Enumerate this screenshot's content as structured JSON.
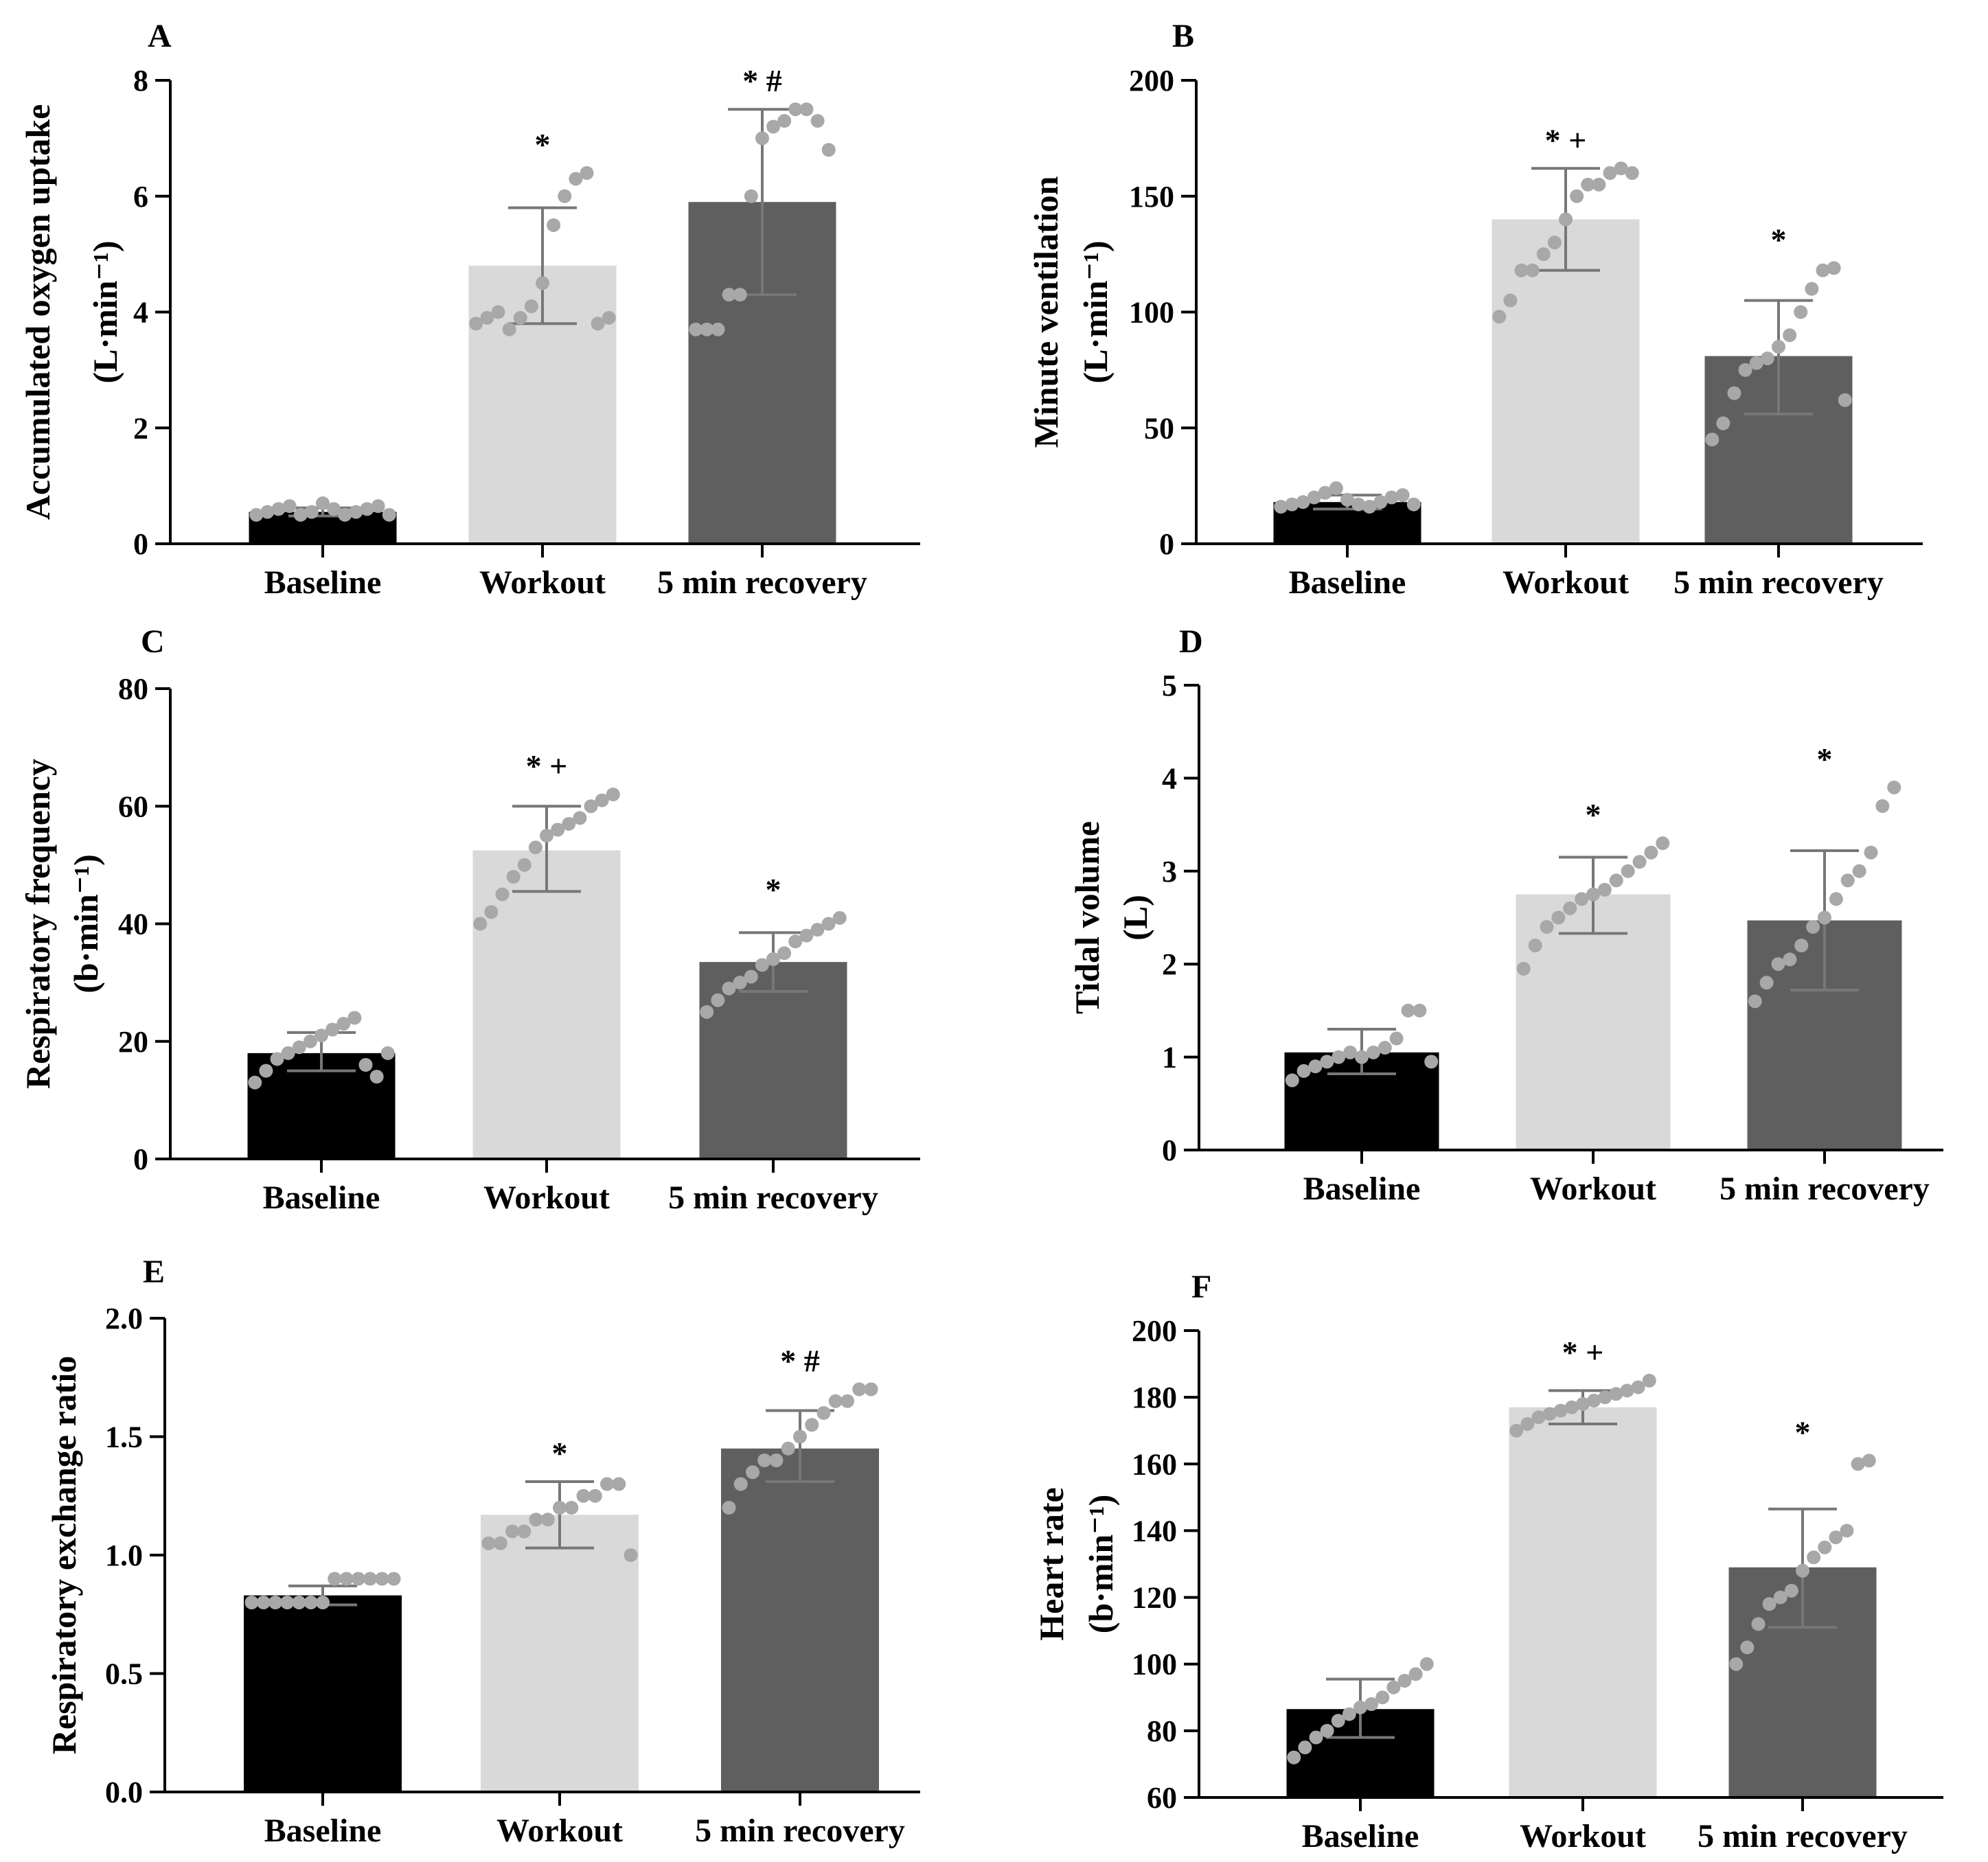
{
  "figure": {
    "panels": [
      {
        "id": "A",
        "letter": "A",
        "ylabel_lines": [
          "Accumulated oxygen uptake",
          "(L·min⁻¹)"
        ],
        "sig": [
          "*",
          "* #"
        ]
      },
      {
        "id": "B",
        "letter": "B",
        "ylabel_lines": [
          "Minute ventilation",
          "(L·min⁻¹)"
        ],
        "sig": [
          "* +",
          "*"
        ]
      },
      {
        "id": "C",
        "letter": "C",
        "ylabel_lines": [
          "Respiratory frequency",
          "(b·min⁻¹)"
        ],
        "sig": [
          "* +",
          "*"
        ]
      },
      {
        "id": "D",
        "letter": "D",
        "ylabel_lines": [
          "Tidal volume",
          "(L)"
        ],
        "sig": [
          "*",
          "*"
        ]
      },
      {
        "id": "E",
        "letter": "E",
        "ylabel_lines": [
          "Respiratory exchange ratio"
        ],
        "sig": [
          "*",
          "* #"
        ]
      },
      {
        "id": "F",
        "letter": "F",
        "ylabel_lines": [
          "Heart rate",
          "(b·min⁻¹)"
        ],
        "sig": [
          "* +",
          "*"
        ]
      }
    ]
  },
  "colors": {
    "baseline": "#000000",
    "workout": "#d9d9d9",
    "recovery": "#5f5f5f",
    "dots": "#a8a8a8",
    "error": "#777777"
  },
  "chart_data": [
    {
      "type": "bar",
      "panel": "A",
      "categories": [
        "Baseline",
        "Workout",
        "5 min recovery"
      ],
      "values": [
        0.55,
        4.8,
        5.9
      ],
      "error_low": [
        0.48,
        3.8,
        4.3
      ],
      "error_high": [
        0.62,
        5.8,
        7.5
      ],
      "points": [
        [
          0.5,
          0.55,
          0.6,
          0.65,
          0.5,
          0.55,
          0.7,
          0.6,
          0.5,
          0.55,
          0.6,
          0.65,
          0.5
        ],
        [
          3.8,
          3.9,
          4.0,
          3.7,
          3.9,
          4.1,
          4.5,
          5.5,
          6.0,
          6.3,
          6.4,
          3.8,
          3.9
        ],
        [
          3.7,
          3.7,
          3.7,
          4.3,
          4.3,
          6.0,
          7.0,
          7.2,
          7.3,
          7.5,
          7.5,
          7.3,
          6.8
        ]
      ],
      "ylim": [
        0,
        8
      ],
      "yticks": [
        0,
        2,
        4,
        6,
        8
      ],
      "tick_labels": [
        "0",
        "2",
        "4",
        "6",
        "8"
      ]
    },
    {
      "type": "bar",
      "panel": "B",
      "categories": [
        "Baseline",
        "Workout",
        "5 min recovery"
      ],
      "values": [
        18,
        140,
        81
      ],
      "error_low": [
        15,
        118,
        56
      ],
      "error_high": [
        21,
        162,
        105
      ],
      "points": [
        [
          16,
          17,
          18,
          20,
          22,
          24,
          19,
          17,
          16,
          18,
          20,
          21,
          17
        ],
        [
          98,
          105,
          118,
          118,
          125,
          130,
          140,
          150,
          155,
          155,
          160,
          162,
          160
        ],
        [
          45,
          52,
          65,
          75,
          78,
          80,
          85,
          90,
          100,
          110,
          118,
          119,
          62
        ]
      ],
      "ylim": [
        0,
        200
      ],
      "yticks": [
        0,
        50,
        100,
        150,
        200
      ],
      "tick_labels": [
        "0",
        "50",
        "100",
        "150",
        "200"
      ]
    },
    {
      "type": "bar",
      "panel": "C",
      "categories": [
        "Baseline",
        "Workout",
        "5 min recovery"
      ],
      "values": [
        18,
        52.5,
        33.5
      ],
      "error_low": [
        15,
        45.5,
        28.5
      ],
      "error_high": [
        21.5,
        60,
        38.5
      ],
      "points": [
        [
          13,
          15,
          17,
          18,
          19,
          20,
          21,
          22,
          23,
          24,
          16,
          14,
          18
        ],
        [
          40,
          42,
          45,
          48,
          50,
          53,
          55,
          56,
          57,
          58,
          60,
          61,
          62
        ],
        [
          25,
          27,
          29,
          30,
          31,
          33,
          34,
          35,
          37,
          38,
          39,
          40,
          41
        ]
      ],
      "ylim": [
        0,
        80
      ],
      "yticks": [
        0,
        20,
        40,
        60,
        80
      ],
      "tick_labels": [
        "0",
        "20",
        "40",
        "60",
        "80"
      ]
    },
    {
      "type": "bar",
      "panel": "D",
      "categories": [
        "Baseline",
        "Workout",
        "5 min recovery"
      ],
      "values": [
        1.05,
        2.75,
        2.47
      ],
      "error_low": [
        0.82,
        2.33,
        1.72
      ],
      "error_high": [
        1.3,
        3.15,
        3.22
      ],
      "points": [
        [
          0.75,
          0.85,
          0.9,
          0.95,
          1.0,
          1.05,
          1.0,
          1.05,
          1.1,
          1.2,
          1.5,
          1.5,
          0.95
        ],
        [
          1.95,
          2.2,
          2.4,
          2.5,
          2.6,
          2.7,
          2.75,
          2.8,
          2.9,
          3.0,
          3.1,
          3.2,
          3.3
        ],
        [
          1.6,
          1.8,
          2.0,
          2.05,
          2.2,
          2.4,
          2.5,
          2.7,
          2.9,
          3.0,
          3.2,
          3.7,
          3.9
        ]
      ],
      "ylim": [
        0,
        5
      ],
      "yticks": [
        0,
        1,
        2,
        3,
        4,
        5
      ],
      "tick_labels": [
        "0",
        "1",
        "2",
        "3",
        "4",
        "5"
      ]
    },
    {
      "type": "bar",
      "panel": "E",
      "categories": [
        "Baseline",
        "Workout",
        "5 min recovery"
      ],
      "values": [
        0.83,
        1.17,
        1.45
      ],
      "error_low": [
        0.79,
        1.03,
        1.31
      ],
      "error_high": [
        0.87,
        1.31,
        1.61
      ],
      "points": [
        [
          0.8,
          0.8,
          0.8,
          0.8,
          0.8,
          0.8,
          0.8,
          0.9,
          0.9,
          0.9,
          0.9,
          0.9,
          0.9
        ],
        [
          1.05,
          1.05,
          1.1,
          1.1,
          1.15,
          1.15,
          1.2,
          1.2,
          1.25,
          1.25,
          1.3,
          1.3,
          1.0
        ],
        [
          1.2,
          1.3,
          1.35,
          1.4,
          1.4,
          1.45,
          1.5,
          1.55,
          1.6,
          1.65,
          1.65,
          1.7,
          1.7
        ]
      ],
      "ylim": [
        0,
        2
      ],
      "yticks": [
        0,
        0.5,
        1,
        1.5,
        2
      ],
      "tick_labels": [
        "0.0",
        "0.5",
        "1.0",
        "1.5",
        "2.0"
      ]
    },
    {
      "type": "bar",
      "panel": "F",
      "categories": [
        "Baseline",
        "Workout",
        "5 min recovery"
      ],
      "values": [
        86.5,
        177,
        129
      ],
      "error_low": [
        78,
        172,
        111
      ],
      "error_high": [
        95.5,
        182,
        146.5
      ],
      "points": [
        [
          72,
          75,
          78,
          80,
          83,
          85,
          87,
          88,
          90,
          93,
          95,
          97,
          100
        ],
        [
          170,
          172,
          174,
          175,
          176,
          177,
          178,
          179,
          180,
          181,
          182,
          183,
          185
        ],
        [
          100,
          105,
          112,
          118,
          120,
          122,
          128,
          132,
          135,
          138,
          140,
          160,
          161
        ]
      ],
      "ylim": [
        60,
        200
      ],
      "yticks": [
        60,
        80,
        100,
        120,
        140,
        160,
        180,
        200
      ],
      "tick_labels": [
        "60",
        "80",
        "100",
        "120",
        "140",
        "160",
        "180",
        "200"
      ]
    }
  ]
}
